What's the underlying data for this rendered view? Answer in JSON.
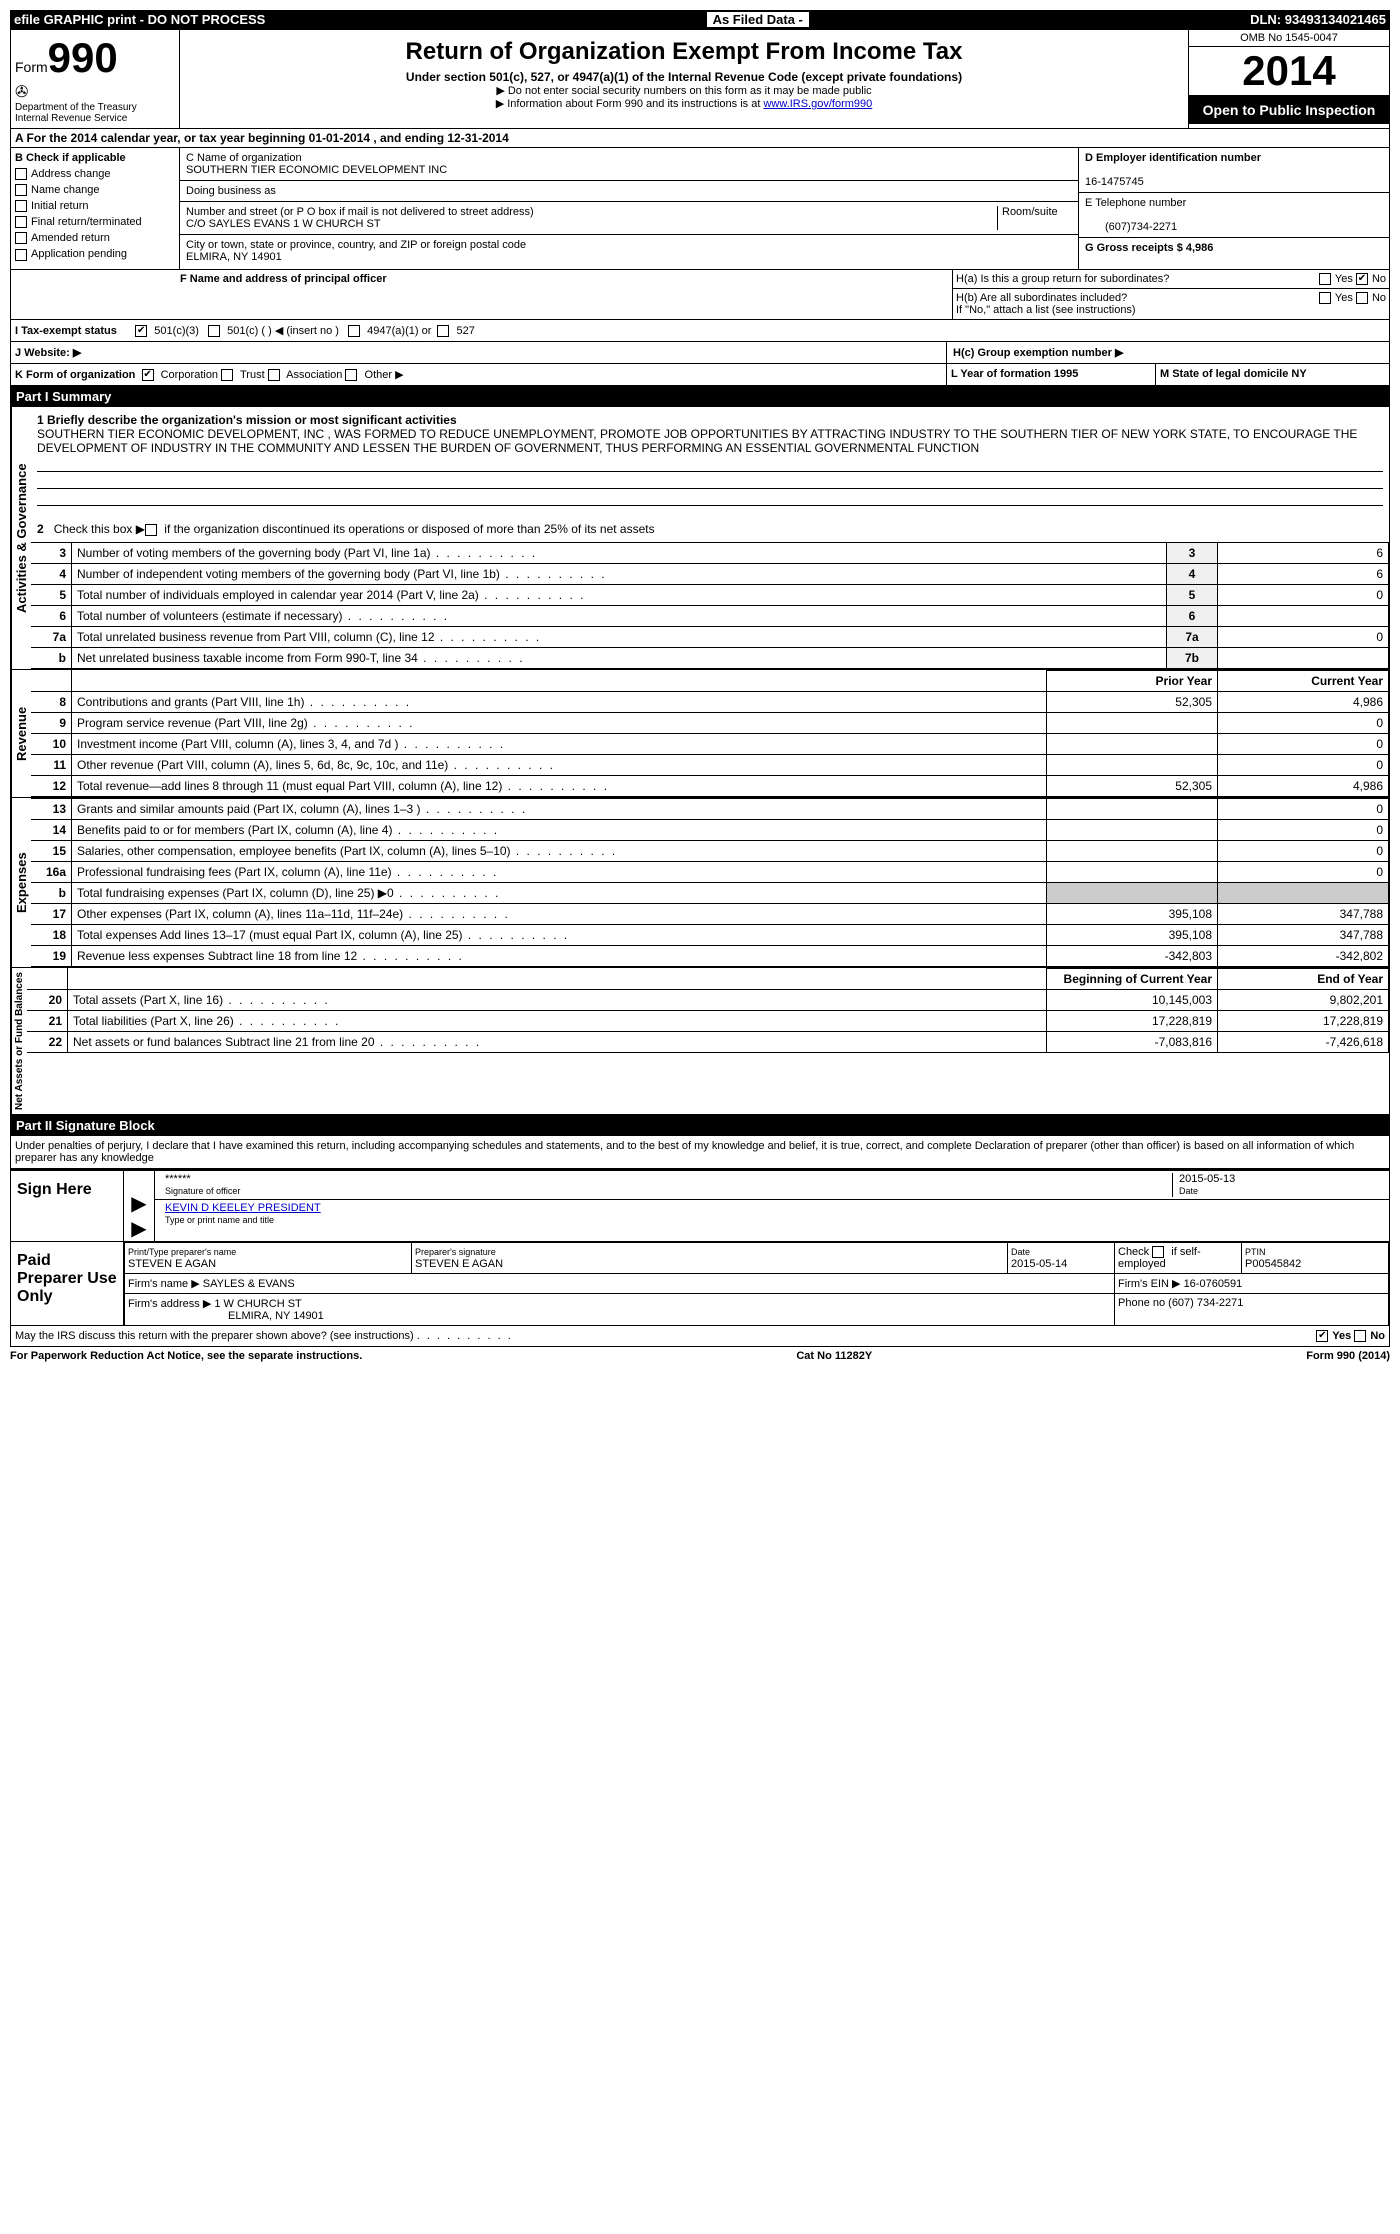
{
  "top_bar": {
    "left": "efile GRAPHIC print - DO NOT PROCESS",
    "mid": "As Filed Data -",
    "right": "DLN: 93493134021465"
  },
  "header": {
    "form_label": "Form",
    "form_number": "990",
    "dept": "Department of the Treasury",
    "irs": "Internal Revenue Service",
    "title": "Return of Organization Exempt From Income Tax",
    "subtitle": "Under section 501(c), 527, or 4947(a)(1) of the Internal Revenue Code (except private foundations)",
    "arrow1": "▶ Do not enter social security numbers on this form as it may be made public",
    "arrow2_pre": "▶ Information about Form 990 and its instructions is at ",
    "arrow2_link": "www.IRS.gov/form990",
    "omb": "OMB No 1545-0047",
    "year": "2014",
    "open": "Open to Public Inspection"
  },
  "section_a": "A For the 2014 calendar year, or tax year beginning 01-01-2014    , and ending 12-31-2014",
  "box_b": {
    "title": "B Check if applicable",
    "items": [
      "Address change",
      "Name change",
      "Initial return",
      "Final return/terminated",
      "Amended return",
      "Application pending"
    ]
  },
  "box_c": {
    "name_label": "C Name of organization",
    "name": "SOUTHERN TIER ECONOMIC DEVELOPMENT INC",
    "dba_label": "Doing business as",
    "addr_label": "Number and street (or P O  box if mail is not delivered to street address)",
    "room_label": "Room/suite",
    "addr": "C/O SAYLES EVANS 1 W CHURCH ST",
    "city_label": "City or town, state or province, country, and ZIP or foreign postal code",
    "city": "ELMIRA, NY  14901"
  },
  "box_d": {
    "label": "D Employer identification number",
    "value": "16-1475745"
  },
  "box_e": {
    "label": "E Telephone number",
    "value": "(607)734-2271"
  },
  "box_g": {
    "label": "G Gross receipts $ 4,986"
  },
  "box_f": "F   Name and address of principal officer",
  "box_h": {
    "a": "H(a)  Is this a group return for subordinates?",
    "b": "H(b)  Are all subordinates included?",
    "b_note": "If \"No,\" attach a list  (see instructions)",
    "c": "H(c)   Group exemption number ▶"
  },
  "row_i": "I   Tax-exempt status",
  "row_i_opts": {
    "a": "501(c)(3)",
    "b": "501(c) (   ) ◀ (insert no )",
    "c": "4947(a)(1) or",
    "d": "527"
  },
  "row_j": "J   Website: ▶",
  "row_k": "K Form of organization",
  "row_k_opts": [
    "Corporation",
    "Trust",
    "Association",
    "Other ▶"
  ],
  "row_l": "L Year of formation  1995",
  "row_m": "M State of legal domicile  NY",
  "part1_title": "Part I     Summary",
  "mission": {
    "q1": "1   Briefly describe the organization's mission or most significant activities",
    "text": "SOUTHERN TIER ECONOMIC DEVELOPMENT, INC , WAS FORMED TO REDUCE UNEMPLOYMENT, PROMOTE JOB OPPORTUNITIES BY ATTRACTING INDUSTRY TO THE SOUTHERN TIER OF NEW YORK STATE, TO ENCOURAGE THE DEVELOPMENT OF INDUSTRY IN THE COMMUNITY AND LESSEN THE BURDEN OF GOVERNMENT, THUS PERFORMING AN ESSENTIAL GOVERNMENTAL FUNCTION",
    "q2": "2   Check this box ▶       if the organization discontinued its operations or disposed of more than 25% of its net assets"
  },
  "gov_lines": [
    {
      "n": "3",
      "d": "Number of voting members of the governing body (Part VI, line 1a)",
      "b": "3",
      "v": "6"
    },
    {
      "n": "4",
      "d": "Number of independent voting members of the governing body (Part VI, line 1b)",
      "b": "4",
      "v": "6"
    },
    {
      "n": "5",
      "d": "Total number of individuals employed in calendar year 2014 (Part V, line 2a)",
      "b": "5",
      "v": "0"
    },
    {
      "n": "6",
      "d": "Total number of volunteers (estimate if necessary)",
      "b": "6",
      "v": ""
    },
    {
      "n": "7a",
      "d": "Total unrelated business revenue from Part VIII, column (C), line 12",
      "b": "7a",
      "v": "0"
    },
    {
      "n": "b",
      "d": "Net unrelated business taxable income from Form 990-T, line 34",
      "b": "7b",
      "v": ""
    }
  ],
  "col_headers": {
    "prior": "Prior Year",
    "current": "Current Year",
    "begin": "Beginning of Current Year",
    "end": "End of Year"
  },
  "revenue_lines": [
    {
      "n": "8",
      "d": "Contributions and grants (Part VIII, line 1h)",
      "p": "52,305",
      "c": "4,986"
    },
    {
      "n": "9",
      "d": "Program service revenue (Part VIII, line 2g)",
      "p": "",
      "c": "0"
    },
    {
      "n": "10",
      "d": "Investment income (Part VIII, column (A), lines 3, 4, and 7d )",
      "p": "",
      "c": "0"
    },
    {
      "n": "11",
      "d": "Other revenue (Part VIII, column (A), lines 5, 6d, 8c, 9c, 10c, and 11e)",
      "p": "",
      "c": "0"
    },
    {
      "n": "12",
      "d": "Total revenue—add lines 8 through 11 (must equal Part VIII, column (A), line 12)",
      "p": "52,305",
      "c": "4,986"
    }
  ],
  "expense_lines": [
    {
      "n": "13",
      "d": "Grants and similar amounts paid (Part IX, column (A), lines 1–3 )",
      "p": "",
      "c": "0"
    },
    {
      "n": "14",
      "d": "Benefits paid to or for members (Part IX, column (A), line 4)",
      "p": "",
      "c": "0"
    },
    {
      "n": "15",
      "d": "Salaries, other compensation, employee benefits (Part IX, column (A), lines 5–10)",
      "p": "",
      "c": "0"
    },
    {
      "n": "16a",
      "d": "Professional fundraising fees (Part IX, column (A), line 11e)",
      "p": "",
      "c": "0"
    },
    {
      "n": "b",
      "d": "Total fundraising expenses (Part IX, column (D), line 25)  ▶0",
      "p": "__gray__",
      "c": "__gray__"
    },
    {
      "n": "17",
      "d": "Other expenses (Part IX, column (A), lines 11a–11d, 11f–24e)",
      "p": "395,108",
      "c": "347,788"
    },
    {
      "n": "18",
      "d": "Total expenses  Add lines 13–17 (must equal Part IX, column (A), line 25)",
      "p": "395,108",
      "c": "347,788"
    },
    {
      "n": "19",
      "d": "Revenue less expenses  Subtract line 18 from line 12",
      "p": "-342,803",
      "c": "-342,802"
    }
  ],
  "asset_lines": [
    {
      "n": "20",
      "d": "Total assets (Part X, line 16)",
      "p": "10,145,003",
      "c": "9,802,201"
    },
    {
      "n": "21",
      "d": "Total liabilities (Part X, line 26)",
      "p": "17,228,819",
      "c": "17,228,819"
    },
    {
      "n": "22",
      "d": "Net assets or fund balances  Subtract line 21 from line 20",
      "p": "-7,083,816",
      "c": "-7,426,618"
    }
  ],
  "part2_title": "Part II     Signature Block",
  "perjury": "Under penalties of perjury, I declare that I have examined this return, including accompanying schedules and statements, and to the best of my knowledge and belief, it is true, correct, and complete  Declaration of preparer (other than officer) is based on all information of which preparer has any knowledge",
  "sign": {
    "label": "Sign Here",
    "stars": "******",
    "sig_of": "Signature of officer",
    "date": "2015-05-13",
    "date_label": "Date",
    "name": "KEVIN D KEELEY PRESIDENT",
    "name_label": "Type or print name and title"
  },
  "paid": {
    "label": "Paid Preparer Use Only",
    "h1": "Print/Type preparer's name",
    "v1": "STEVEN E AGAN",
    "h2": "Preparer's signature",
    "v2": "STEVEN E AGAN",
    "h3": "Date",
    "v3": "2015-05-14",
    "h4": "Check        if self-employed",
    "h5": "PTIN",
    "v5": "P00545842",
    "firm_name_l": "Firm's name    ▶",
    "firm_name": "SAYLES & EVANS",
    "firm_ein_l": "Firm's EIN ▶",
    "firm_ein": "16-0760591",
    "firm_addr_l": "Firm's address ▶",
    "firm_addr": "1 W CHURCH ST",
    "firm_city": "ELMIRA, NY  14901",
    "phone_l": "Phone no  (607) 734-2271"
  },
  "may_irs": "May the IRS discuss this return with the preparer shown above? (see instructions)",
  "footer": {
    "left": "For Paperwork Reduction Act Notice, see the separate instructions.",
    "mid": "Cat No  11282Y",
    "right": "Form 990 (2014)"
  },
  "labels": {
    "yes": "Yes",
    "no": "No",
    "activities_governance": "Activities & Governance",
    "revenue": "Revenue",
    "expenses": "Expenses",
    "net_assets": "Net Assets or Fund Balances"
  }
}
